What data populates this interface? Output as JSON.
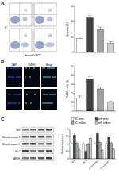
{
  "figure": {
    "panel_labels": [
      "A",
      "B",
      "C"
    ],
    "flow_cytometry": {
      "x_label": "Annexin V-FITC",
      "y_label": "PI"
    },
    "image_columns": [
      "DAPI",
      "TUNEL",
      "Merge"
    ],
    "blot_rows": [
      "Bax",
      "Cleaved caspase-3",
      "Cleaved caspase-9",
      "Bcl-2",
      "GAPDH"
    ]
  },
  "chart_data": [
    {
      "type": "bar",
      "y_label": "Apoptosis (%)",
      "categories": [
        null,
        null,
        null,
        null
      ],
      "values": [
        18,
        45,
        30,
        12
      ],
      "errors": [
        2,
        3,
        3,
        2
      ],
      "colors": [
        "#ffffff",
        "#404040",
        "#a0a0a0",
        "#d0d0d0"
      ],
      "ylim": [
        0,
        60
      ],
      "yticks": [
        0,
        20,
        40,
        60
      ]
    },
    {
      "type": "bar",
      "y_label": "TUNEL+ cells (%)",
      "categories": [
        null,
        null,
        null,
        null
      ],
      "values": [
        15,
        36,
        25,
        10
      ],
      "errors": [
        2,
        3,
        2,
        1
      ],
      "colors": [
        "#ffffff",
        "#404040",
        "#a0a0a0",
        "#d0d0d0"
      ],
      "ylim": [
        0,
        50
      ],
      "yticks": [
        0,
        10,
        20,
        30,
        40,
        50
      ]
    },
    {
      "type": "bar",
      "y_label": "Relative expression",
      "legend": "top",
      "categories": [
        "Bax",
        "Bcl-2",
        "C-caspase-3",
        "C-caspase-9"
      ],
      "series": [
        {
          "name": "NC mimic",
          "color": "#ffffff",
          "values": [
            1,
            1,
            1,
            1
          ],
          "errors": [
            0.08,
            0.08,
            0.08,
            0.08
          ]
        },
        {
          "name": "miR mimic",
          "color": "#404040",
          "values": [
            1.6,
            0.5,
            1.7,
            1.5
          ],
          "errors": [
            0.12,
            0.06,
            0.12,
            0.1
          ]
        },
        {
          "name": "NC inhibitor",
          "color": "#a0a0a0",
          "values": [
            1.05,
            0.95,
            1.1,
            1.05
          ],
          "errors": [
            0.08,
            0.08,
            0.08,
            0.08
          ]
        },
        {
          "name": "miR inhibitor",
          "color": "#d0d0d0",
          "values": [
            0.6,
            1.4,
            0.55,
            0.65
          ],
          "errors": [
            0.06,
            0.1,
            0.06,
            0.06
          ]
        }
      ],
      "ylim": [
        0,
        2
      ],
      "yticks": [
        0,
        0.5,
        1,
        1.5,
        2
      ]
    }
  ]
}
